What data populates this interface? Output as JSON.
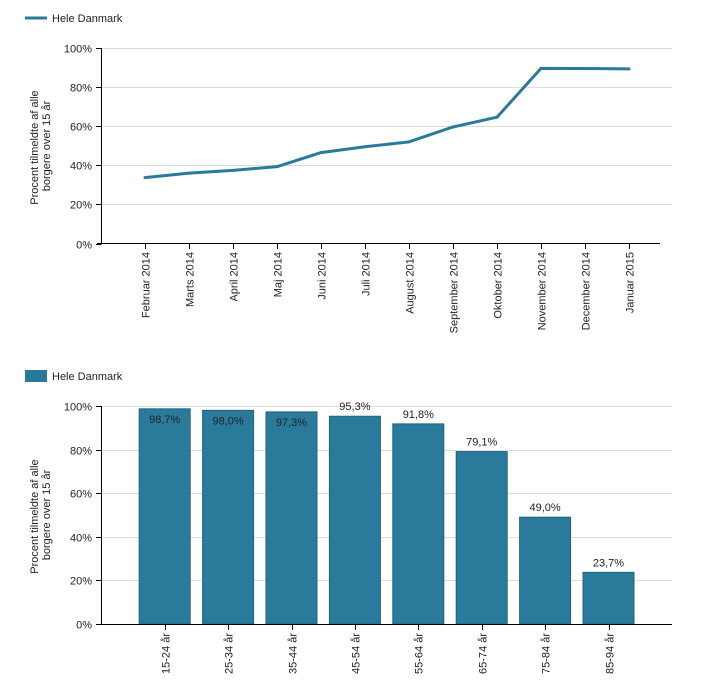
{
  "chart_data": [
    {
      "type": "line",
      "legend": {
        "label": "Hele Danmark",
        "position": "top-left"
      },
      "series": [
        {
          "name": "Hele Danmark",
          "color": "#2a7b9b",
          "values": [
            33.7,
            36.0,
            37.4,
            39.3,
            46.5,
            49.5,
            52.0,
            59.6,
            64.6,
            89.6,
            89.5,
            89.3
          ]
        }
      ],
      "categories": [
        "Februar 2014",
        "Marts 2014",
        "April 2014",
        "Maj 2014",
        "Juni 2014",
        "Juli 2014",
        "August 2014",
        "September 2014",
        "Oktober 2014",
        "November 2014",
        "December 2014",
        "Januar 2015"
      ],
      "ylabel_lines": [
        "Procent tilmeldte af alle",
        "borgere over 15 år"
      ],
      "xlabel": "",
      "ylim": [
        0,
        100
      ],
      "yticks": [
        0,
        20,
        40,
        60,
        80,
        100
      ],
      "ytick_labels": [
        "0%",
        "20%",
        "40%",
        "60%",
        "80%",
        "100%"
      ],
      "grid": true
    },
    {
      "type": "bar",
      "legend": {
        "label": "Hele Danmark",
        "position": "top-left"
      },
      "series": [
        {
          "name": "Hele Danmark",
          "color": "#2a7b9b",
          "values": [
            98.7,
            98.0,
            97.3,
            95.3,
            91.8,
            79.1,
            49.0,
            23.7
          ]
        }
      ],
      "data_labels": [
        "98,7%",
        "98,0%",
        "97,3%",
        "95,3%",
        "91,8%",
        "79,1%",
        "49,0%",
        "23,7%"
      ],
      "categories": [
        "15-24 år",
        "25-34 år",
        "35-44 år",
        "45-54 år",
        "55-64 år",
        "65-74 år",
        "75-84 år",
        "85-94 år"
      ],
      "ylabel_lines": [
        "Procent tilmeldte af alle",
        "borgere over 15 år"
      ],
      "xlabel": "",
      "ylim": [
        0,
        100
      ],
      "yticks": [
        0,
        20,
        40,
        60,
        80,
        100
      ],
      "ytick_labels": [
        "0%",
        "20%",
        "40%",
        "60%",
        "80%",
        "100%"
      ],
      "grid": true
    }
  ]
}
